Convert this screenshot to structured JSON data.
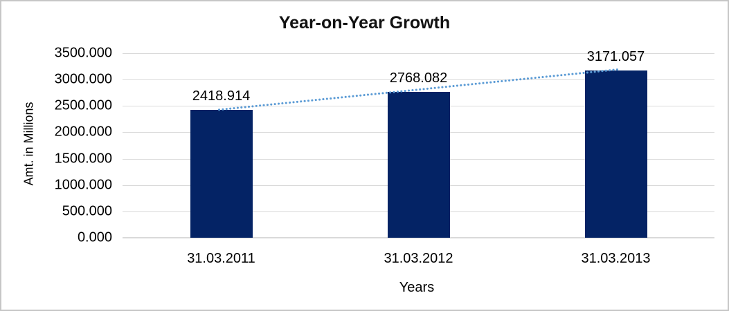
{
  "window": {
    "background": "#FFFFFF",
    "border_color": "#C6C6C6"
  },
  "chart_data": {
    "type": "bar",
    "title": "Year-on-Year Growth",
    "xlabel": "Years",
    "ylabel": "Amt. in Millions",
    "categories": [
      "31.03.2011",
      "31.03.2012",
      "31.03.2013"
    ],
    "values": [
      2418.914,
      2768.082,
      3171.057
    ],
    "data_labels": [
      "2418.914",
      "2768.082",
      "3171.057"
    ],
    "y_ticks": [
      "3500.000",
      "3000.000",
      "2500.000",
      "2000.000",
      "1500.000",
      "1000.000",
      "500.000",
      "0.000"
    ],
    "ylim": [
      0,
      3500
    ],
    "grid": true,
    "legend": "none",
    "trendline": {
      "style": "dotted",
      "from_category": "31.03.2011",
      "to_category": "31.03.2013",
      "color": "#5B9BD5"
    },
    "colors": {
      "bar": "#042365",
      "gridline": "#D9D9D9",
      "axis_line": "#D9D9D9",
      "text": "#000000"
    }
  }
}
